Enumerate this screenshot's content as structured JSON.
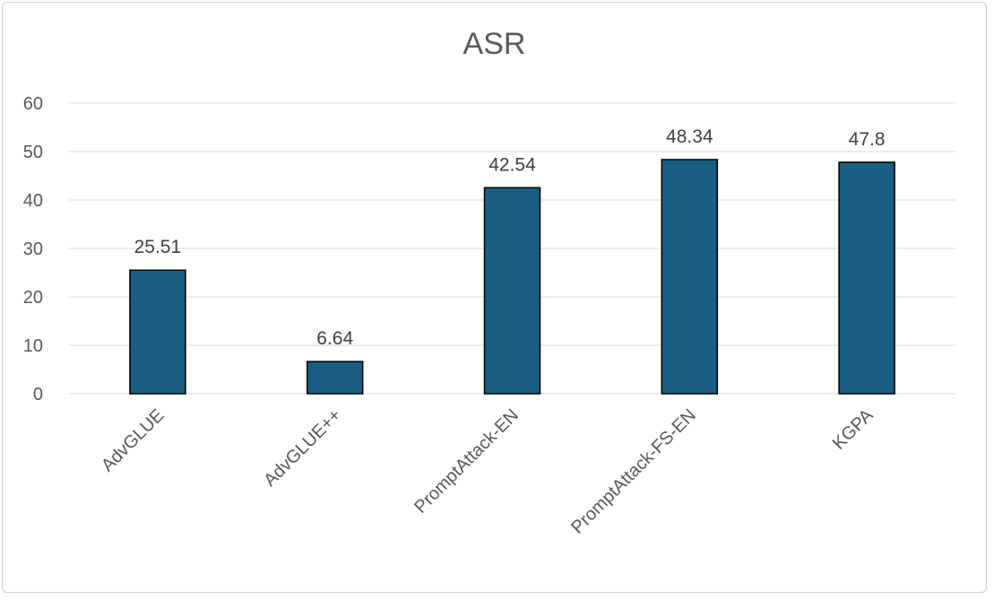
{
  "chart_data": {
    "type": "bar",
    "title": "ASR",
    "categories": [
      "AdvGLUE",
      "AdvGLUE++",
      "PromptAttack-EN",
      "PromptAttack-FS-EN",
      "KGPA"
    ],
    "values": [
      25.51,
      6.64,
      42.54,
      48.34,
      47.8
    ],
    "data_labels": [
      "25.51",
      "6.64",
      "42.54",
      "48.34",
      "47.8"
    ],
    "yticks": [
      "0",
      "10",
      "20",
      "30",
      "40",
      "50",
      "60"
    ],
    "ylim": [
      0,
      60
    ],
    "grid": true,
    "legend": "none",
    "colors": {
      "bar": "#175E80",
      "bar_edge": "#000000",
      "grid": "#d9d9d9",
      "text": "#595959"
    }
  }
}
